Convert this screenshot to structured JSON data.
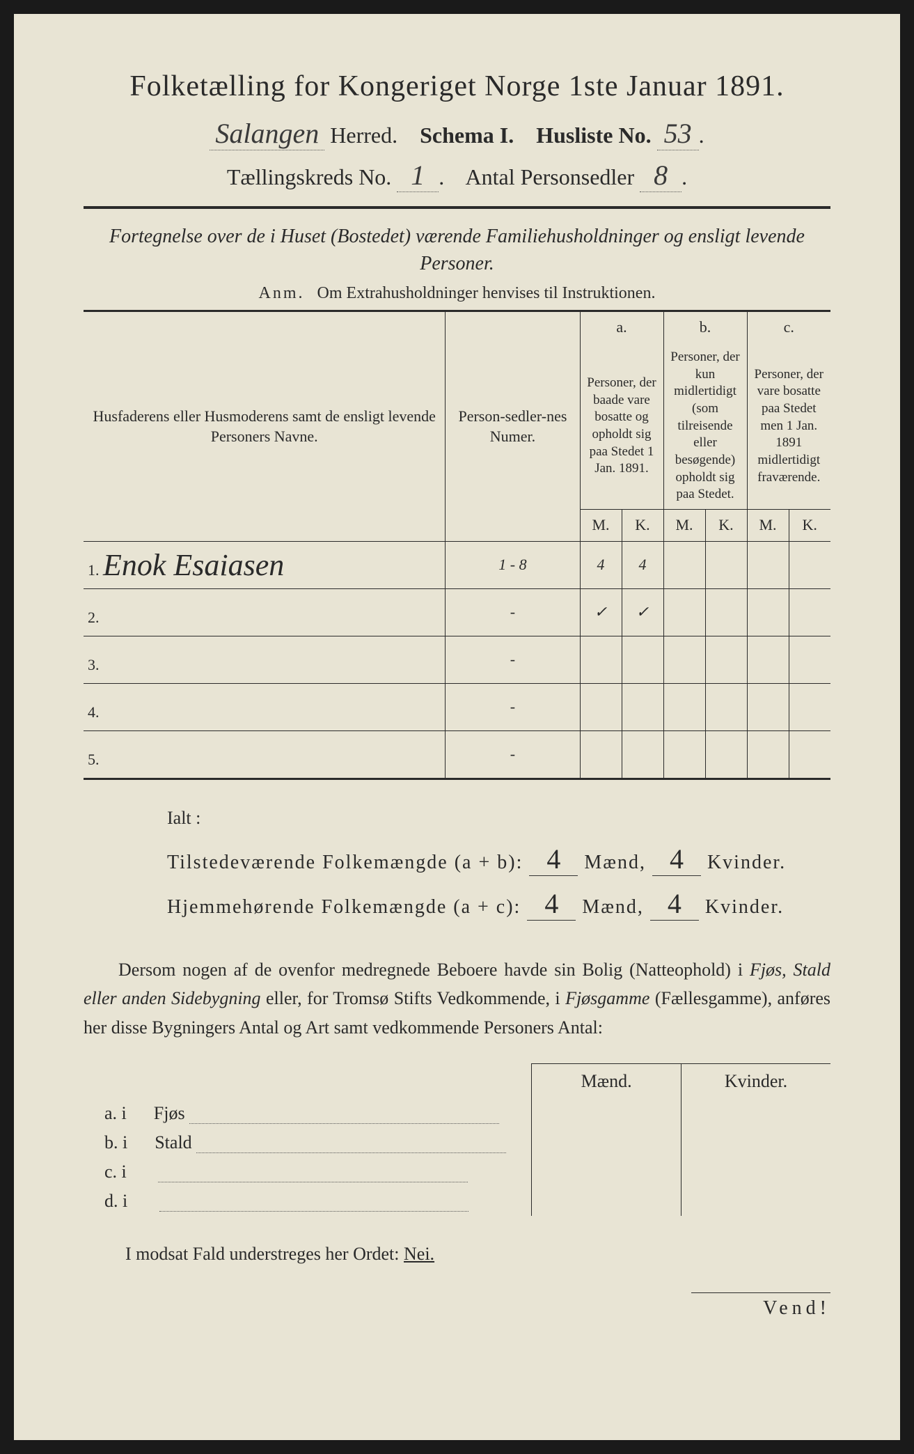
{
  "title": "Folketælling for Kongeriget Norge 1ste Januar 1891.",
  "header": {
    "herred_value": "Salangen",
    "herred_label": "Herred.",
    "schema_label": "Schema I.",
    "husliste_label": "Husliste No.",
    "husliste_value": "53",
    "kreds_label": "Tællingskreds No.",
    "kreds_value": "1",
    "personsedler_label": "Antal Personsedler",
    "personsedler_value": "8"
  },
  "subtitle": "Fortegnelse over de i Huset (Bostedet) værende Familiehusholdninger og ensligt levende Personer.",
  "anm_label": "Anm.",
  "anm_text": "Om Extrahusholdninger henvises til Instruktionen.",
  "table": {
    "col_name": "Husfaderens eller Husmoderens samt de ensligt levende Personers Navne.",
    "col_numer": "Person-sedler-nes Numer.",
    "col_a_label": "a.",
    "col_a_text": "Personer, der baade vare bosatte og opholdt sig paa Stedet 1 Jan. 1891.",
    "col_b_label": "b.",
    "col_b_text": "Personer, der kun midlertidigt (som tilreisende eller besøgende) opholdt sig paa Stedet.",
    "col_c_label": "c.",
    "col_c_text": "Personer, der vare bosatte paa Stedet men 1 Jan. 1891 midlertidigt fraværende.",
    "m_label": "M.",
    "k_label": "K.",
    "rows": [
      {
        "num": "1.",
        "name": "Enok Esaiasen",
        "numer": "1 - 8",
        "a_m": "4",
        "a_k": "4",
        "b_m": "",
        "b_k": "",
        "c_m": "",
        "c_k": ""
      },
      {
        "num": "2.",
        "name": "",
        "numer": "-",
        "a_m": "✓",
        "a_k": "✓",
        "b_m": "",
        "b_k": "",
        "c_m": "",
        "c_k": ""
      },
      {
        "num": "3.",
        "name": "",
        "numer": "-",
        "a_m": "",
        "a_k": "",
        "b_m": "",
        "b_k": "",
        "c_m": "",
        "c_k": ""
      },
      {
        "num": "4.",
        "name": "",
        "numer": "-",
        "a_m": "",
        "a_k": "",
        "b_m": "",
        "b_k": "",
        "c_m": "",
        "c_k": ""
      },
      {
        "num": "5.",
        "name": "",
        "numer": "-",
        "a_m": "",
        "a_k": "",
        "b_m": "",
        "b_k": "",
        "c_m": "",
        "c_k": ""
      }
    ]
  },
  "totals": {
    "ialt": "Ialt :",
    "line1_label": "Tilstedeværende Folkemængde (a + b):",
    "line1_m": "4",
    "line1_k": "4",
    "line2_label": "Hjemmehørende Folkemængde (a + c):",
    "line2_m": "4",
    "line2_k": "4",
    "maend": "Mænd,",
    "kvinder": "Kvinder."
  },
  "paragraph": {
    "p1": "Dersom nogen af de ovenfor medregnede Beboere havde sin Bolig (Natteophold) i ",
    "it1": "Fjøs, Stald eller anden Sidebygning",
    "p2": " eller, for Tromsø Stifts Vedkommende, i ",
    "it2": "Fjøsgamme",
    "p3": " (Fællesgamme), anføres her disse Bygningers Antal og Art samt vedkommende Personers Antal:"
  },
  "bygn": {
    "maend": "Mænd.",
    "kvinder": "Kvinder.",
    "rows": [
      {
        "lbl": "a.  i",
        "name": "Fjøs"
      },
      {
        "lbl": "b.  i",
        "name": "Stald"
      },
      {
        "lbl": "c.  i",
        "name": ""
      },
      {
        "lbl": "d.  i",
        "name": ""
      }
    ]
  },
  "modsat": "I modsat Fald understreges her Ordet:",
  "nei": "Nei.",
  "vend": "Vend!",
  "colors": {
    "paper": "#e8e4d4",
    "ink": "#2a2a2a",
    "background": "#1a1a1a"
  }
}
